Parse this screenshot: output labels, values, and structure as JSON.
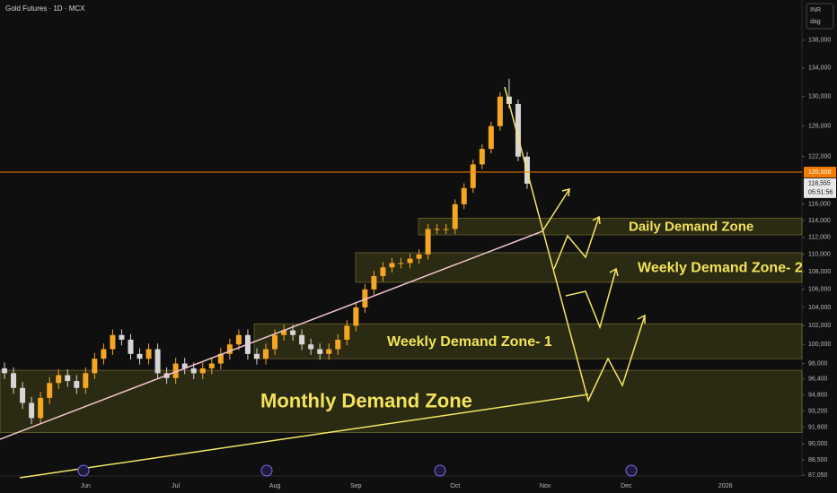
{
  "chart_data": {
    "type": "candlestick",
    "title": "Gold Futures · 1D · MCX",
    "currency": "INR",
    "menu": "dag",
    "log_scale": true,
    "grid": false,
    "up_color": "#f5a623",
    "down_color": "#d6d6d6",
    "categories": [
      null,
      null,
      null,
      null,
      null,
      null,
      null,
      null,
      null,
      "Jun",
      null,
      null,
      null,
      null,
      null,
      null,
      null,
      null,
      null,
      "Jul",
      null,
      null,
      null,
      null,
      null,
      null,
      null,
      null,
      null,
      null,
      "Aug",
      null,
      null,
      null,
      null,
      null,
      null,
      null,
      null,
      "Sep",
      null,
      null,
      null,
      null,
      null,
      null,
      null,
      null,
      null,
      null,
      "Oct",
      null,
      null,
      null,
      null,
      null,
      null,
      null,
      null,
      null,
      "Nov",
      null,
      null,
      null,
      null,
      null,
      null,
      null,
      null,
      "Dec",
      null,
      null,
      null,
      null,
      null,
      null,
      null,
      null,
      null,
      null,
      "2026",
      null,
      null,
      null,
      null,
      null,
      null,
      null,
      null
    ],
    "open": [
      97500,
      97000,
      95500,
      94000,
      92500,
      94500,
      96000,
      96800,
      96200,
      95500,
      97000,
      98500,
      99500,
      101000,
      100500,
      99000,
      98500,
      99500,
      97000,
      96500,
      98000,
      97500,
      97000,
      97500,
      98000,
      99000,
      100000,
      101000,
      99000,
      98500,
      99500,
      101000,
      101500,
      101000,
      100000,
      99500,
      99000,
      99500,
      100500,
      102000,
      104000,
      106000,
      107500,
      108500,
      109000,
      109000,
      109500,
      110000,
      113000,
      113000,
      113000,
      116000,
      118000,
      121000,
      123000,
      126000,
      130000,
      129000,
      122000,
      null,
      null,
      null,
      null,
      null,
      null,
      null,
      null,
      null,
      null,
      null,
      null,
      null,
      null,
      null,
      null,
      null,
      null,
      null,
      null,
      null,
      null,
      null,
      null,
      null,
      null,
      null,
      null,
      null,
      null
    ],
    "high": [
      98100,
      97600,
      96100,
      94600,
      95100,
      96600,
      97400,
      97400,
      96800,
      97600,
      99100,
      100100,
      101600,
      101600,
      101100,
      99600,
      100100,
      100100,
      97600,
      98600,
      98600,
      98100,
      98100,
      98600,
      99600,
      100600,
      101600,
      101600,
      99600,
      100100,
      101600,
      102100,
      102100,
      101600,
      100600,
      100100,
      100100,
      101100,
      102600,
      104600,
      106600,
      108100,
      109100,
      109600,
      109600,
      110100,
      110600,
      113600,
      113600,
      113600,
      116600,
      118600,
      121600,
      123600,
      126600,
      130600,
      132500,
      129600,
      122600,
      null,
      null,
      null,
      null,
      null,
      null,
      null,
      null,
      null,
      null,
      null,
      null,
      null,
      null,
      null,
      null,
      null,
      null,
      null,
      null,
      null,
      null,
      null,
      null,
      null,
      null,
      null,
      null,
      null,
      null
    ],
    "low": [
      96400,
      94900,
      93400,
      91900,
      91900,
      93900,
      95400,
      95600,
      94900,
      94900,
      96400,
      97900,
      98900,
      99900,
      98400,
      97900,
      97900,
      96400,
      95900,
      95900,
      96900,
      96400,
      96400,
      96900,
      97400,
      98400,
      99400,
      98400,
      97900,
      97900,
      98900,
      100400,
      100400,
      99400,
      98900,
      98400,
      98400,
      98900,
      99900,
      101400,
      103400,
      105400,
      106900,
      107900,
      108400,
      108400,
      108900,
      109400,
      112400,
      112400,
      112400,
      115400,
      117400,
      120400,
      122400,
      125400,
      128400,
      121400,
      117900,
      null,
      null,
      null,
      null,
      null,
      null,
      null,
      null,
      null,
      null,
      null,
      null,
      null,
      null,
      null,
      null,
      null,
      null,
      null,
      null,
      null,
      null,
      null,
      null,
      null,
      null,
      null,
      null,
      null,
      null
    ],
    "close": [
      97000,
      95500,
      94000,
      92500,
      94500,
      96000,
      96800,
      96200,
      95500,
      97000,
      98500,
      99500,
      101000,
      100500,
      99000,
      98500,
      99500,
      97000,
      96500,
      98000,
      97500,
      97000,
      97500,
      98000,
      99000,
      100000,
      101000,
      99000,
      98500,
      99500,
      101000,
      101500,
      101000,
      100000,
      99500,
      99000,
      99500,
      100500,
      102000,
      104000,
      106000,
      107500,
      108500,
      109000,
      109000,
      109500,
      110000,
      113000,
      113000,
      113000,
      116000,
      118000,
      121000,
      123000,
      126000,
      130000,
      129000,
      122000,
      118555,
      null,
      null,
      null,
      null,
      null,
      null,
      null,
      null,
      null,
      null,
      null,
      null,
      null,
      null,
      null,
      null,
      null,
      null,
      null,
      null,
      null,
      null,
      null,
      null,
      null,
      null,
      null,
      null,
      null,
      null
    ],
    "ylim": [
      87000,
      144000
    ],
    "yticks": [
      {
        "value": 87050,
        "label": "87,050"
      },
      {
        "value": 88500,
        "label": "88,500"
      },
      {
        "value": 90000,
        "label": "90,000"
      },
      {
        "value": 91600,
        "label": "91,600"
      },
      {
        "value": 93200,
        "label": "93,200"
      },
      {
        "value": 94800,
        "label": "94,800"
      },
      {
        "value": 96400,
        "label": "96,400"
      },
      {
        "value": 98000,
        "label": "98,000"
      },
      {
        "value": 100000,
        "label": "100,000"
      },
      {
        "value": 102000,
        "label": "102,000"
      },
      {
        "value": 104000,
        "label": "104,000"
      },
      {
        "value": 106000,
        "label": "106,000"
      },
      {
        "value": 108000,
        "label": "108,000"
      },
      {
        "value": 110000,
        "label": "110,000"
      },
      {
        "value": 112000,
        "label": "112,000"
      },
      {
        "value": 114000,
        "label": "114,000"
      },
      {
        "value": 116000,
        "label": "116,000"
      },
      {
        "value": 122000,
        "label": "122,000"
      },
      {
        "value": 126000,
        "label": "126,000"
      },
      {
        "value": 130000,
        "label": "130,000"
      },
      {
        "value": 134000,
        "label": "134,000"
      },
      {
        "value": 138000,
        "label": "138,000"
      }
    ],
    "zones": [
      {
        "label": "Monthly Demand Zone",
        "range": [
          91100,
          97300
        ]
      },
      {
        "label": "Weekly Demand Zone- 1",
        "range": [
          98500,
          102200
        ]
      },
      {
        "label": "Weekly Demand Zone- 2",
        "range": [
          106800,
          110200
        ]
      },
      {
        "label": "Daily Demand Zone",
        "range": [
          112300,
          114300
        ]
      }
    ],
    "price_line": {
      "value": 120008,
      "label": "120,008",
      "color": "#f57c00"
    },
    "last_price": {
      "value": 118555,
      "label": "118,555",
      "countdown": "05:51:56"
    }
  }
}
